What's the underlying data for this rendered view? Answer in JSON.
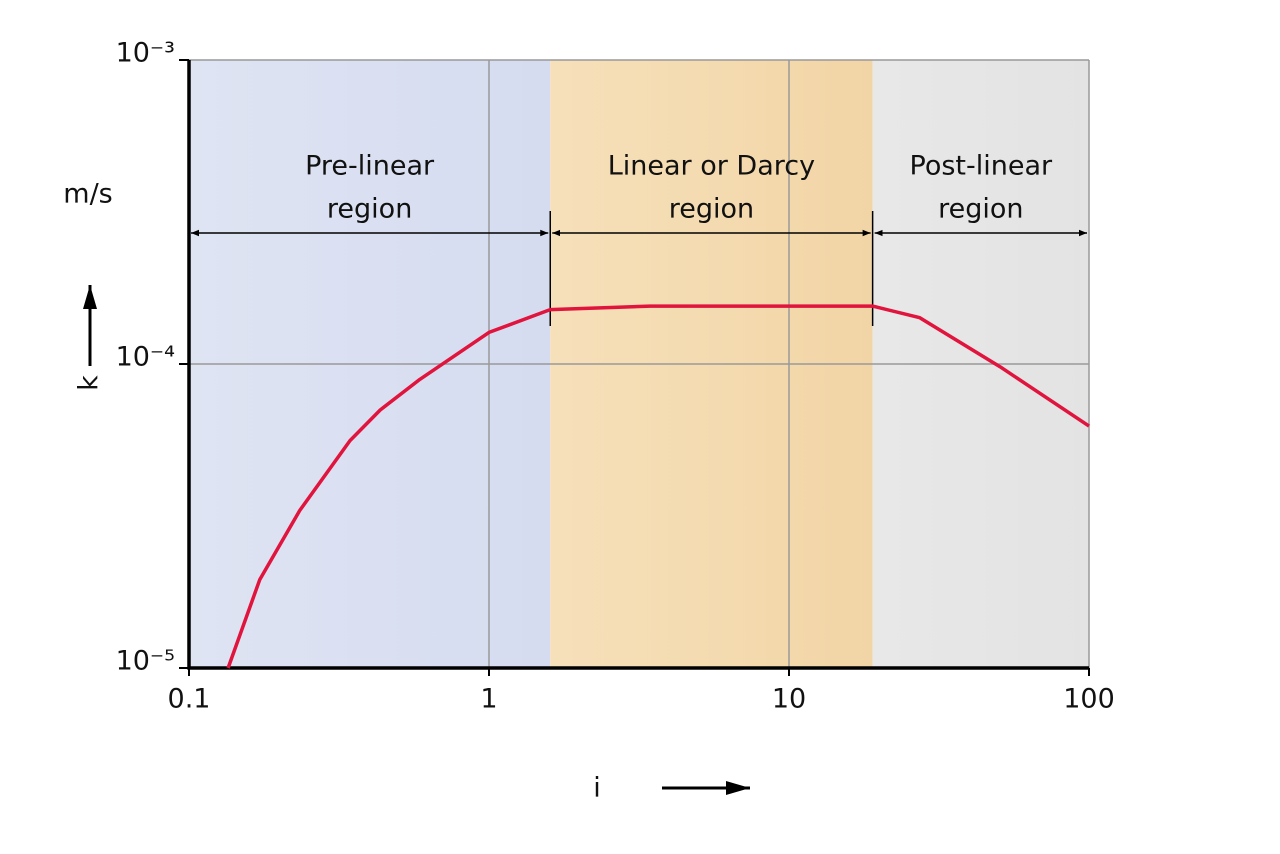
{
  "chart_data": {
    "type": "line",
    "x": [
      0.135,
      0.172,
      0.234,
      0.344,
      0.434,
      0.588,
      1,
      1.6,
      3.44,
      19,
      27.3,
      50.5,
      100
    ],
    "values": [
      1e-05,
      1.95e-05,
      3.3e-05,
      5.6e-05,
      7.06e-05,
      8.9e-05,
      0.000127,
      0.000151,
      0.000155,
      0.000155,
      0.000142,
      9.8e-05,
      6.25e-05
    ],
    "color": "#e0143c",
    "xscale": "log",
    "yscale": "log",
    "xlim": [
      0.1,
      100
    ],
    "ylim": [
      1e-05,
      0.001
    ],
    "xticks": [
      0.1,
      1,
      10,
      100
    ],
    "yticks": [
      {
        "value": 1e-05,
        "label": "10⁻⁵"
      },
      {
        "value": 0.0001,
        "label": "10⁻⁴"
      },
      {
        "value": 0.001,
        "label": "10⁻³"
      }
    ],
    "grid": true,
    "y_unit": "m/s",
    "ylabel": "k",
    "xlabel": "i",
    "regions": [
      {
        "label_lines": [
          "Pre-linear",
          "region"
        ],
        "start": 0.1,
        "end": 1.6,
        "colors": [
          "#dfe4f3",
          "#d5dcf0"
        ]
      },
      {
        "label_lines": [
          "Linear or Darcy",
          "region"
        ],
        "start": 1.6,
        "end": 19,
        "colors": [
          "#f6e0ba",
          "#f2d5a6"
        ]
      },
      {
        "label_lines": [
          "Post-linear",
          "region"
        ],
        "start": 19,
        "end": 100,
        "colors": [
          "#e8e8e8",
          "#e3e3e3"
        ]
      }
    ]
  }
}
